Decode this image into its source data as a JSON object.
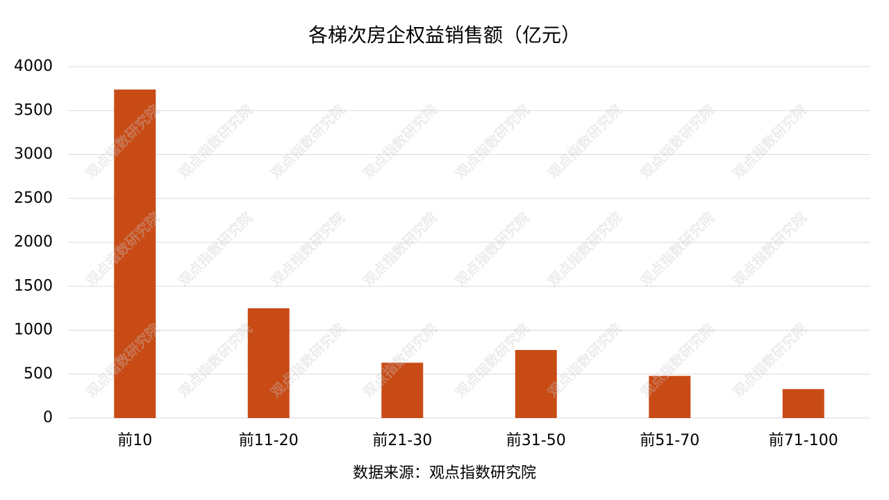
{
  "chart_data": {
    "type": "bar",
    "title": "各梯次房企权益销售额（亿元）",
    "categories": [
      "前10",
      "前11-20",
      "前21-30",
      "前31-50",
      "前51-70",
      "前71-100"
    ],
    "values": [
      3740,
      1250,
      630,
      775,
      480,
      330
    ],
    "color": "#c84b16",
    "ylim": [
      0,
      4000
    ],
    "yticks": [
      0,
      500,
      1000,
      1500,
      2000,
      2500,
      3000,
      3500,
      4000
    ],
    "grid": true,
    "source": "数据来源：观点指数研究院",
    "watermark": "观点指数研究院"
  }
}
